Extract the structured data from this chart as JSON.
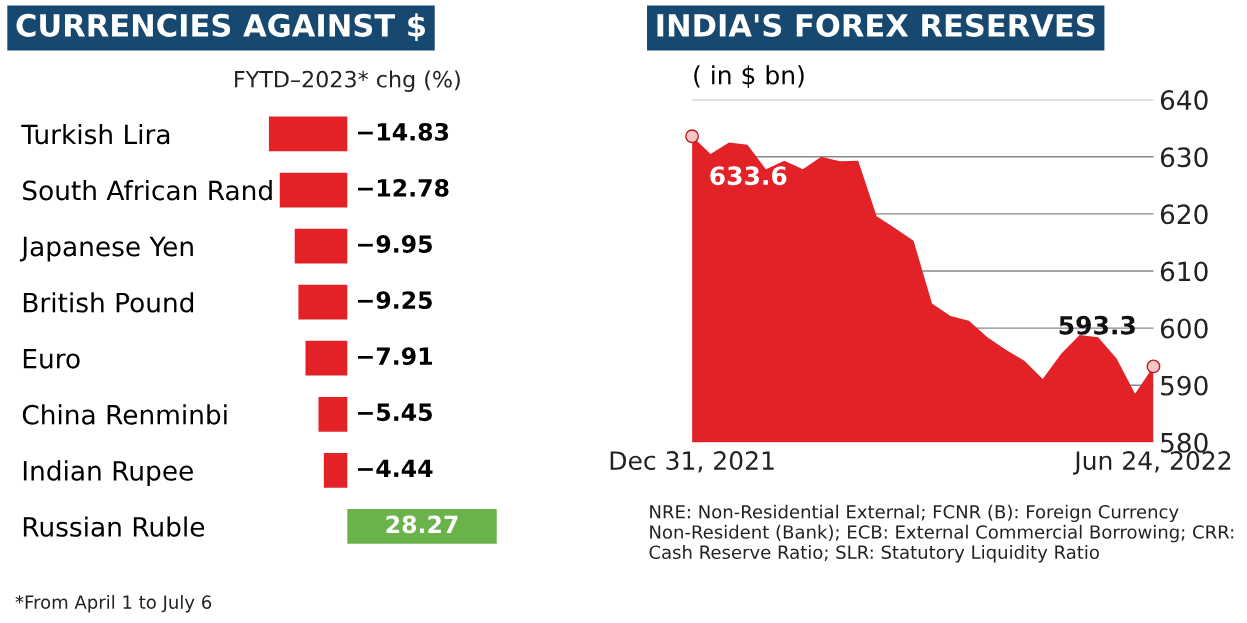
{
  "chart_data": [
    {
      "type": "bar",
      "orientation": "horizontal",
      "title": "CURRENCIES AGAINST $",
      "subtitle": "FYTD–2023* chg (%)",
      "categories": [
        "Turkish Lira",
        "South African Rand",
        "Japanese Yen",
        "British Pound",
        "Euro",
        "China Renminbi",
        "Indian Rupee",
        "Russian Ruble"
      ],
      "values": [
        -14.83,
        -12.78,
        -9.95,
        -9.25,
        -7.91,
        -5.45,
        -4.44,
        28.27
      ],
      "colors": [
        "#e32227",
        "#e32227",
        "#e32227",
        "#e32227",
        "#e32227",
        "#e32227",
        "#e32227",
        "#6ab34a"
      ],
      "data_labels": true,
      "tick_labels": "y",
      "grid": false,
      "legend": false,
      "annotations": [
        "*From April 1 to July 6"
      ]
    },
    {
      "type": "area",
      "title": "INDIA'S FOREX RESERVES",
      "ylabel": "( in $ bn)",
      "x": [
        "2021-12-31",
        "2022-01-07",
        "2022-01-14",
        "2022-01-21",
        "2022-01-28",
        "2022-02-04",
        "2022-02-11",
        "2022-02-18",
        "2022-02-25",
        "2022-03-04",
        "2022-03-11",
        "2022-03-18",
        "2022-03-25",
        "2022-04-01",
        "2022-04-08",
        "2022-04-15",
        "2022-04-22",
        "2022-04-29",
        "2022-05-06",
        "2022-05-13",
        "2022-05-20",
        "2022-05-27",
        "2022-06-03",
        "2022-06-10",
        "2022-06-17",
        "2022-06-24"
      ],
      "series": [
        {
          "color": "#e32227",
          "values": [
            633.6,
            630.5,
            632.5,
            632.1,
            627.8,
            629.3,
            627.8,
            630.0,
            629.2,
            629.3,
            619.6,
            617.5,
            615.3,
            604.3,
            602.1,
            601.3,
            598.4,
            596.2,
            594.3,
            591.1,
            595.5,
            598.8,
            598.4,
            594.7,
            588.5,
            593.3
          ]
        }
      ],
      "xlim": [
        "2021-12-31",
        "2022-06-24"
      ],
      "ylim": [
        580,
        640
      ],
      "yticks": [
        580,
        590,
        600,
        610,
        620,
        630,
        640
      ],
      "xticks": [
        {
          "value": "2021-12-31",
          "label": "Dec 31, 2021"
        },
        {
          "value": "2022-06-24",
          "label": "Jun 24, 2022"
        }
      ],
      "grid": "y",
      "legend": false,
      "annotations": [
        {
          "text": "633.6",
          "x": "2021-12-31",
          "y": 633.6
        },
        {
          "text": "593.3",
          "x": "2022-06-24",
          "y": 593.3
        },
        "NRE: Non-Residential External; FCNR (B): Foreign Currency Non-Resident (Bank); ECB: External Commercial Borrowing; CRR: Cash Reserve Ratio; SLR: Statutory Liquidity Ratio"
      ]
    }
  ]
}
